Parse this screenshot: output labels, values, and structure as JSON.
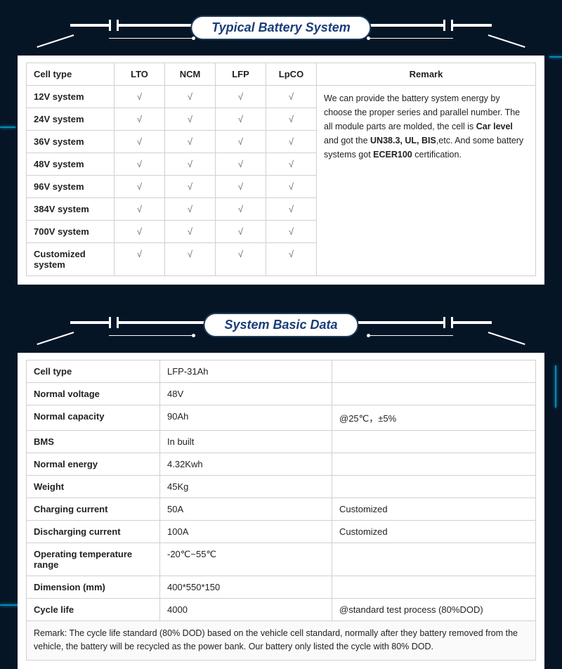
{
  "colors": {
    "page_bg": "#051525",
    "card_bg": "#ffffff",
    "title_text": "#1a3d7a",
    "border": "#d0d0d0",
    "tech_line": "#ffffff",
    "circuit": "#0a88b5",
    "text": "#222222"
  },
  "typography": {
    "title_fontsize": 18,
    "body_fontsize": 13,
    "small_fontsize": 12.5,
    "title_style": "bold italic"
  },
  "section1": {
    "title": "Typical Battery System",
    "table": {
      "type": "table",
      "columns": [
        "Cell type",
        "LTO",
        "NCM",
        "LFP",
        "LpCO",
        "Remark"
      ],
      "rows": [
        [
          "12V system",
          "√",
          "√",
          "√",
          "√"
        ],
        [
          "24V system",
          "√",
          "√",
          "√",
          "√"
        ],
        [
          "36V system",
          "√",
          "√",
          "√",
          "√"
        ],
        [
          "48V system",
          "√",
          "√",
          "√",
          "√"
        ],
        [
          "96V system",
          "√",
          "√",
          "√",
          "√"
        ],
        [
          "384V system",
          "√",
          "√",
          "√",
          "√"
        ],
        [
          "700V system",
          "√",
          "√",
          "√",
          "√"
        ],
        [
          "Customized system",
          "√",
          "√",
          "√",
          "√"
        ]
      ],
      "remark_parts": {
        "p1": "We can provide the battery system energy by choose the proper series and parallel number. The all module parts are molded, the cell is ",
        "b1": "Car level",
        "p2": " and got the ",
        "b2": "UN38.3, UL, BIS",
        "p3": ",etc. And some battery systems got ",
        "b3": "ECER100",
        "p4": " certification."
      }
    }
  },
  "section2": {
    "title": "System Basic Data",
    "table": {
      "type": "table",
      "rows": [
        {
          "k": "Cell type",
          "v": "LFP-31Ah",
          "n": ""
        },
        {
          "k": "Normal voltage",
          "v": "48V",
          "n": ""
        },
        {
          "k": "Normal capacity",
          "v": "90Ah",
          "n": "@25℃，±5%"
        },
        {
          "k": "BMS",
          "v": "In built",
          "n": ""
        },
        {
          "k": "Normal energy",
          "v": "4.32Kwh",
          "n": ""
        },
        {
          "k": "Weight",
          "v": "45Kg",
          "n": ""
        },
        {
          "k": "Charging current",
          "v": "50A",
          "n": "Customized"
        },
        {
          "k": "Discharging current",
          "v": "100A",
          "n": "Customized"
        },
        {
          "k": "Operating temperature range",
          "v": "-20℃~55℃",
          "n": ""
        },
        {
          "k": "Dimension (mm)",
          "v": "400*550*150",
          "n": ""
        },
        {
          "k": "Cycle life",
          "v": "4000",
          "n": "@standard test process (80%DOD)"
        }
      ],
      "footnote": "Remark: The cycle life standard (80% DOD) based on the vehicle cell standard, normally after they battery removed from the vehicle, the battery will be recycled as the power bank. Our battery only listed the cycle with 80% DOD."
    }
  }
}
